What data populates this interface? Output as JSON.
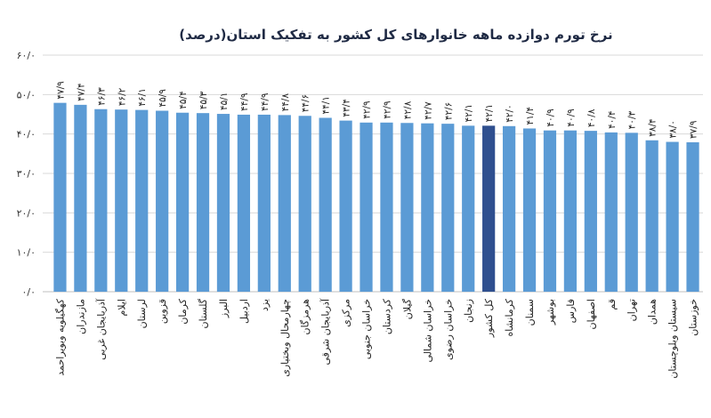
{
  "chart_data": {
    "type": "bar",
    "title": "نرخ تورم دوازده ماهه خانوارهای کل کشور به تفکیک استان(درصد)",
    "xlabel": "",
    "ylabel": "",
    "ylim": [
      0,
      60
    ],
    "ytick_values": [
      0,
      10,
      20,
      30,
      40,
      50,
      60
    ],
    "ytick_labels": [
      "۰/۰",
      "۱۰/۰",
      "۲۰/۰",
      "۳۰/۰",
      "۴۰/۰",
      "۵۰/۰",
      "۶۰/۰"
    ],
    "grid": true,
    "legend": "none",
    "categories": [
      "کهگیلویه وبویراحمد",
      "مازندران",
      "آذربایجان غربی",
      "ایلام",
      "لرستان",
      "قزوین",
      "کرمان",
      "گلستان",
      "البرز",
      "اردبیل",
      "یزد",
      "چهارمحال وبختیاری",
      "هرمزگان",
      "آذربایجان شرقی",
      "مرکزی",
      "خراسان جنوبی",
      "کردستان",
      "گیلان",
      "خراسان شمالی",
      "خراسان رضوی",
      "زنجان",
      "کل کشور",
      "کرمانشاه",
      "سمنان",
      "بوشهر",
      "فارس",
      "اصفهان",
      "قم",
      "تهران",
      "همدان",
      "سیستان وبلوچستان",
      "خوزستان"
    ],
    "values": [
      47.9,
      47.4,
      46.3,
      46.2,
      46.1,
      45.9,
      45.4,
      45.3,
      45.1,
      44.9,
      44.9,
      44.8,
      44.6,
      44.1,
      43.4,
      42.9,
      42.9,
      42.8,
      42.7,
      42.6,
      42.1,
      42.1,
      42.0,
      41.4,
      40.9,
      40.9,
      40.8,
      40.4,
      40.3,
      38.4,
      38.0,
      37.9
    ],
    "value_labels": [
      "۴۷/۹",
      "۴۷/۴",
      "۴۶/۳",
      "۴۶/۲",
      "۴۶/۱",
      "۴۵/۹",
      "۴۵/۴",
      "۴۵/۳",
      "۴۵/۱",
      "۴۴/۹",
      "۴۴/۹",
      "۴۴/۸",
      "۴۴/۶",
      "۴۴/۱",
      "۴۳/۴",
      "۴۲/۹",
      "۴۲/۹",
      "۴۲/۸",
      "۴۲/۷",
      "۴۲/۶",
      "۴۲/۱",
      "۴۲/۱",
      "۴۲/۰",
      "۴۱/۴",
      "۴۰/۹",
      "۴۰/۹",
      "۴۰/۸",
      "۴۰/۴",
      "۴۰/۳",
      "۳۸/۴",
      "۳۸/۰",
      "۳۷/۹"
    ],
    "highlight_index": 21,
    "colors": {
      "bar": "#5b9bd5",
      "highlight": "#2f4f8f",
      "grid": "#d9d9d9",
      "title": "#1f2a44"
    }
  }
}
